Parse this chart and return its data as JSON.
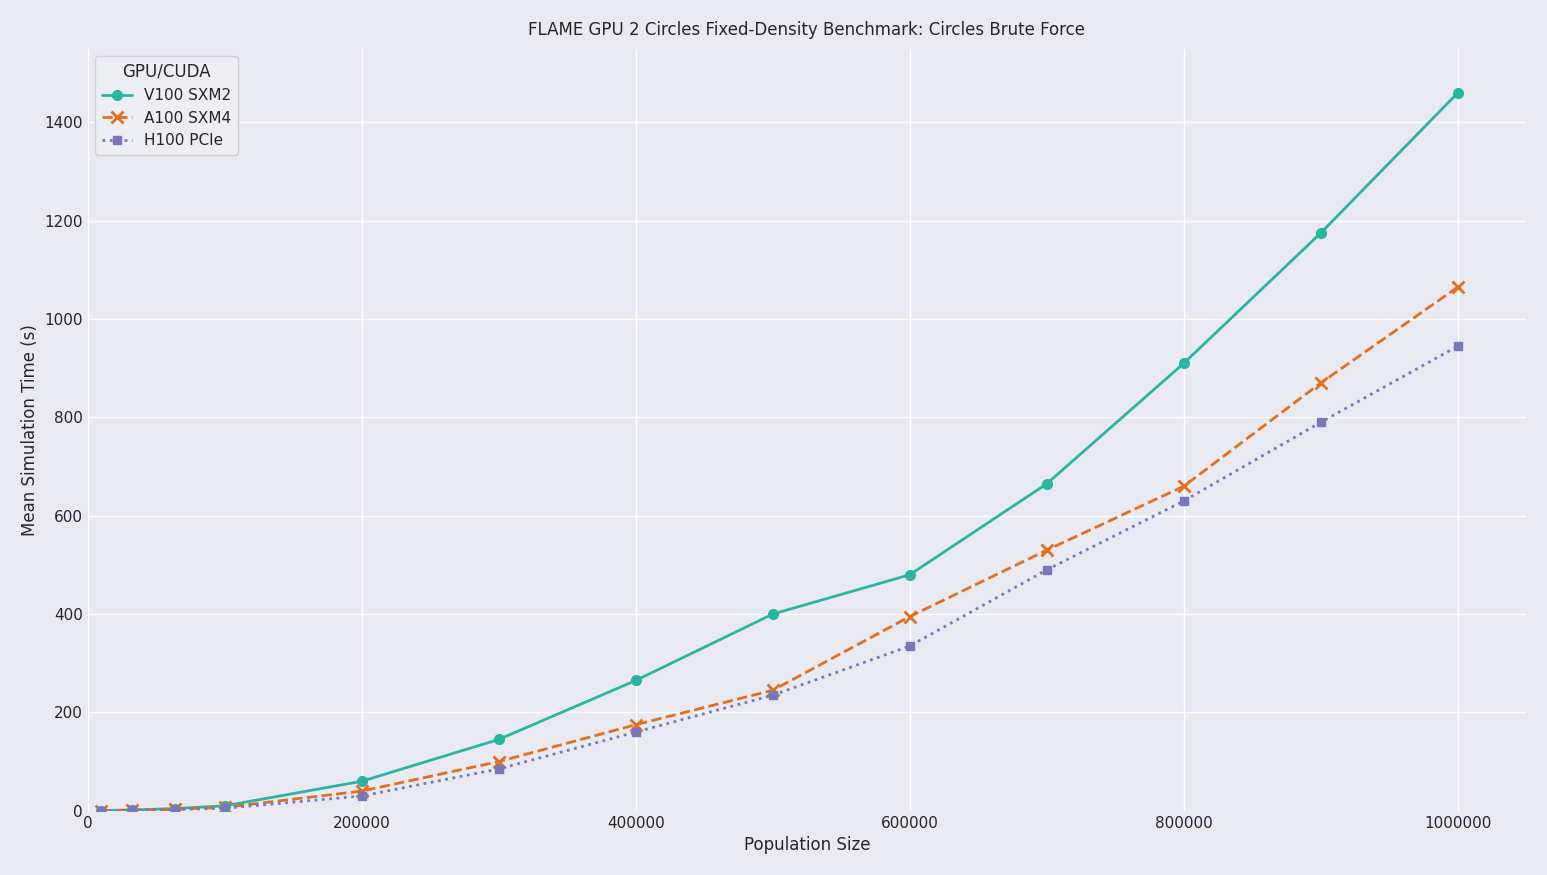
{
  "title": "FLAME GPU 2 Circles Fixed-Density Benchmark: Circles Brute Force",
  "xlabel": "Population Size",
  "ylabel": "Mean Simulation Time (s)",
  "legend_title": "GPU/CUDA",
  "series": [
    {
      "label": "V100 SXM2",
      "color": "#2ab5a0",
      "linestyle": "solid",
      "marker": "o",
      "markersize": 7,
      "linewidth": 2.0,
      "x": [
        10000,
        32000,
        64000,
        100000,
        200000,
        300000,
        400000,
        500000,
        600000,
        700000,
        800000,
        900000,
        1000000
      ],
      "y": [
        0.5,
        1.5,
        4.5,
        10,
        60,
        145,
        265,
        400,
        480,
        665,
        910,
        1175,
        1460
      ]
    },
    {
      "label": "A100 SXM4",
      "color": "#e07020",
      "linestyle": "dashed",
      "marker": "x",
      "markersize": 9,
      "linewidth": 2.0,
      "x": [
        10000,
        32000,
        64000,
        100000,
        200000,
        300000,
        400000,
        500000,
        600000,
        700000,
        800000,
        900000,
        1000000
      ],
      "y": [
        0.3,
        1.0,
        3.0,
        7,
        40,
        100,
        175,
        245,
        395,
        530,
        660,
        870,
        1065
      ]
    },
    {
      "label": "H100 PCIe",
      "color": "#7777bb",
      "linestyle": "dotted",
      "marker": "s",
      "markersize": 6,
      "linewidth": 2.0,
      "x": [
        10000,
        32000,
        64000,
        100000,
        200000,
        300000,
        400000,
        500000,
        600000,
        700000,
        800000,
        900000,
        1000000
      ],
      "y": [
        0.2,
        0.8,
        2.5,
        5,
        30,
        85,
        160,
        235,
        335,
        490,
        630,
        790,
        945
      ]
    }
  ],
  "xlim": [
    0,
    1050000
  ],
  "ylim": [
    0,
    1550
  ],
  "xticks": [
    0,
    200000,
    400000,
    600000,
    800000,
    1000000
  ],
  "yticks": [
    0,
    200,
    400,
    600,
    800,
    1000,
    1200,
    1400
  ],
  "figsize": [
    15.47,
    8.75
  ],
  "dpi": 100,
  "axes_facecolor": "#E9E9F2",
  "figure_facecolor": "#E9E9F2",
  "grid_color": "#ffffff",
  "grid_linewidth": 1.0,
  "title_fontsize": 12,
  "label_fontsize": 12,
  "tick_fontsize": 11,
  "legend_fontsize": 11,
  "legend_title_fontsize": 12
}
